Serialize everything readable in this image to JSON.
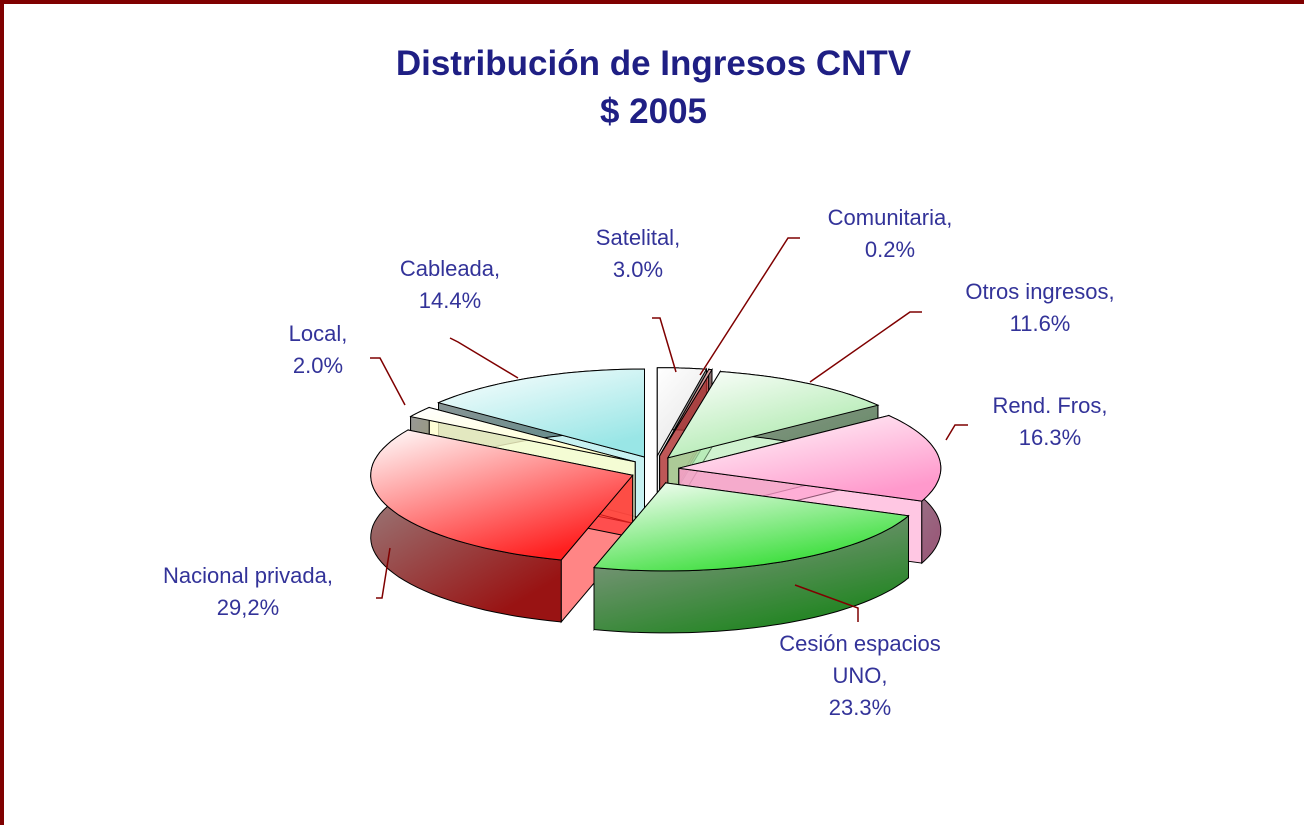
{
  "chart_data": {
    "type": "pie",
    "title": "Distribución de Ingresos CNTV",
    "subtitle": "$ 2005",
    "categories": [
      "Satelital,",
      "Comunitaria,",
      "Otros ingresos,",
      "Rend. Fros,",
      "Cesión espacios UNO,",
      "Nacional privada,",
      "Local,",
      "Cableada,"
    ],
    "values": [
      3.0,
      0.2,
      11.6,
      16.3,
      23.3,
      29.2,
      2.0,
      14.4
    ],
    "value_labels": [
      "3.0%",
      "0.2%",
      "11.6%",
      "16.3%",
      "23.3%",
      "29,2%",
      "2.0%",
      "14.4%"
    ],
    "colors": [
      "#e6e6e6",
      "#b03030",
      "#a8e8a8",
      "#ff99cc",
      "#33dd33",
      "#ff2020",
      "#ffffcc",
      "#99e6e6"
    ]
  }
}
